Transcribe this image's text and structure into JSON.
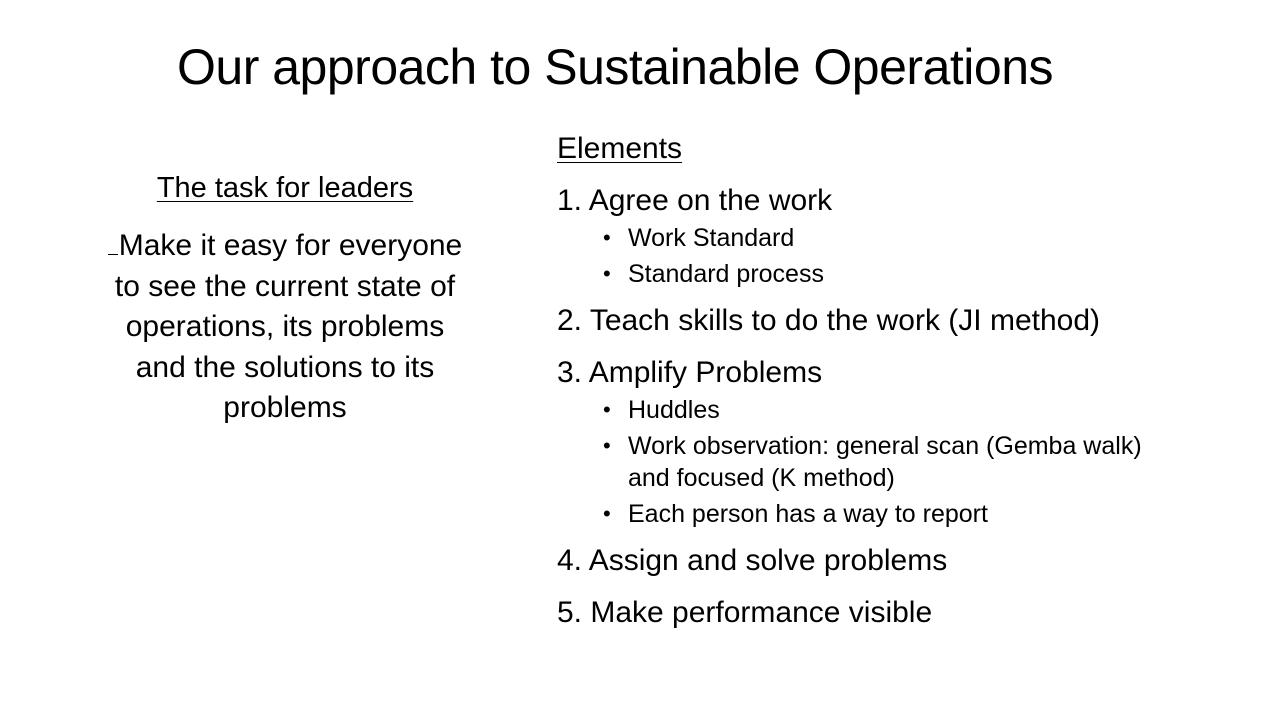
{
  "slide": {
    "title": "Our approach to Sustainable Operations",
    "left": {
      "heading": "The task for leaders",
      "body": "Make it easy for everyone to see the current state of operations, its problems and the solutions to its problems"
    },
    "right": {
      "heading": "Elements",
      "items": [
        {
          "label": "1. Agree on the work",
          "subitems": [
            "Work Standard",
            "Standard process"
          ]
        },
        {
          "label": "2. Teach skills to do the work (JI method)",
          "subitems": []
        },
        {
          "label": "3. Amplify Problems",
          "subitems": [
            "Huddles",
            "Work observation: general scan (Gemba walk) and focused (K method)",
            "Each person has a way to report"
          ]
        },
        {
          "label": "4. Assign and solve problems",
          "subitems": []
        },
        {
          "label": "5. Make performance visible",
          "subitems": []
        }
      ]
    }
  }
}
